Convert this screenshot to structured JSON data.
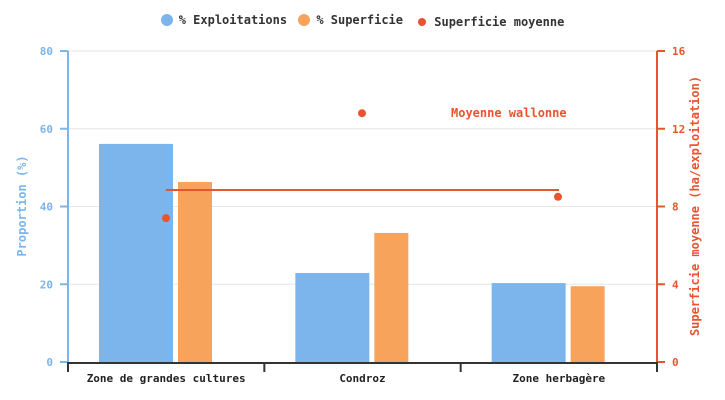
{
  "chart_data": {
    "type": "bar",
    "title": "",
    "categories": [
      "Zone de grandes cultures",
      "Condroz",
      "Zone herbagère"
    ],
    "series": [
      {
        "name": "% Exploitations",
        "type": "bar",
        "axis": "left",
        "color": "#7cb5ec",
        "values": [
          56.1,
          22.9,
          20.3
        ]
      },
      {
        "name": "% Superficie",
        "type": "bar",
        "axis": "left",
        "color": "#f7a35c",
        "values": [
          46.3,
          33.2,
          19.5
        ]
      },
      {
        "name": "Superficie moyenne",
        "type": "scatter",
        "axis": "right",
        "color": "#e8542e",
        "values": [
          7.4,
          12.8,
          8.5
        ]
      }
    ],
    "reference_line": {
      "label": "Moyenne wallonne",
      "value": 8.85,
      "axis": "right",
      "color": "#e8542e"
    },
    "xlabel": "",
    "ylabel": "Proportion (%)",
    "ylabel_right": "Superficie moyenne (ha/exploitation)",
    "ylim": [
      0,
      80
    ],
    "ylim_right": [
      0,
      16
    ],
    "yticks": [
      0,
      20,
      40,
      60,
      80
    ],
    "yticks_right": [
      0,
      4,
      8,
      12,
      16
    ],
    "grid": true,
    "legend_position": "top"
  },
  "legend": [
    {
      "label": "% Exploitations",
      "color": "#7cb5ec",
      "size": 12
    },
    {
      "label": "% Superficie",
      "color": "#f7a35c",
      "size": 12
    },
    {
      "label": "Superficie moyenne",
      "color": "#e8542e",
      "size": 8
    }
  ],
  "annotation": "Moyenne wallonne"
}
